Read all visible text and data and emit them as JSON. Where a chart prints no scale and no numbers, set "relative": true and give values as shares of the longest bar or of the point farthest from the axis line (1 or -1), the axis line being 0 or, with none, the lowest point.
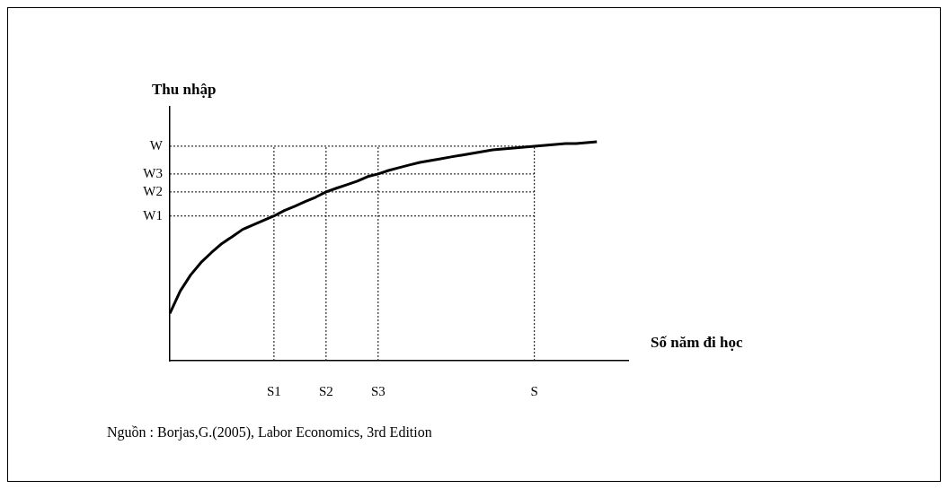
{
  "chart_data": {
    "type": "line",
    "relative": true,
    "ylabel": "Thu nhập",
    "xlabel": "Số năm đi học",
    "legend": false,
    "marker": "none",
    "line_style": "solid",
    "categories": [
      null,
      null,
      null,
      null,
      null,
      null,
      null,
      null,
      null,
      null,
      "S1",
      null,
      null,
      null,
      null,
      "S2",
      null,
      null,
      null,
      null,
      "S3",
      null,
      null,
      null,
      null,
      null,
      null,
      null,
      null,
      null,
      null,
      null,
      null,
      null,
      null,
      "S",
      null,
      null,
      null,
      null,
      null,
      null,
      null,
      null,
      null
    ],
    "series": [
      {
        "color": "#000000",
        "values": [
          0.216,
          0.318,
          0.392,
          0.449,
          0.494,
          0.535,
          0.567,
          0.6,
          0.62,
          0.641,
          0.661,
          0.686,
          0.706,
          0.727,
          0.747,
          0.771,
          0.788,
          0.804,
          0.82,
          0.841,
          0.853,
          0.869,
          0.882,
          0.894,
          0.906,
          0.914,
          0.922,
          0.931,
          0.939,
          0.947,
          0.955,
          0.963,
          0.967,
          0.971,
          0.976,
          0.98,
          0.984,
          0.988,
          0.992,
          0.992,
          0.996,
          1,
          null,
          null,
          null
        ]
      }
    ],
    "ref_lines": [
      {
        "axis": "x",
        "value": "S1",
        "line_style": "dotted",
        "color": "#000000"
      },
      {
        "axis": "x",
        "value": "S2",
        "line_style": "dotted",
        "color": "#000000"
      },
      {
        "axis": "x",
        "value": "S3",
        "line_style": "dotted",
        "color": "#000000"
      },
      {
        "axis": "x",
        "value": "S",
        "line_style": "dotted",
        "color": "#000000"
      },
      {
        "axis": "y",
        "value": 0.661,
        "label": "W1",
        "line_style": "dotted",
        "color": "#000000"
      },
      {
        "axis": "y",
        "value": 0.771,
        "label": "W2",
        "line_style": "dotted",
        "color": "#000000"
      },
      {
        "axis": "y",
        "value": 0.853,
        "label": "W3",
        "line_style": "dotted",
        "color": "#000000"
      },
      {
        "axis": "y",
        "value": 0.98,
        "label": "W",
        "line_style": "dotted",
        "color": "#000000"
      }
    ],
    "annotations": [
      "Nguồn : Borjas,G.(2005), Labor Economics, 3rd Edition"
    ]
  }
}
